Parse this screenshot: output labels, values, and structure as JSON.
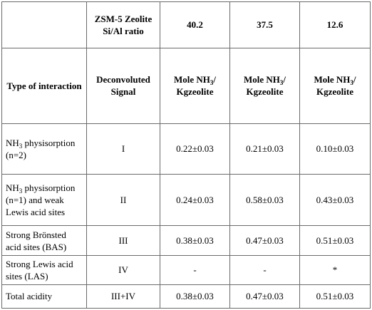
{
  "header": {
    "row1": [
      "",
      "ZSM-5 Zeolite Si/Al ratio",
      "40.2",
      "37.5",
      "12.6"
    ],
    "type_label": "Type of interaction",
    "signal_label": "Deconvoluted Signal",
    "unit": {
      "prefix": "Mole NH",
      "sub": "3",
      "suffix": "/ Kgzeolite"
    }
  },
  "rows": [
    {
      "type": "physisorption (n=2)",
      "type_prefix": "NH",
      "type_sub": "3",
      "signal": "I",
      "values": [
        "0.22±0.03",
        "0.21±0.03",
        "0.10±0.03"
      ]
    },
    {
      "type": "physisorption (n=1) and weak Lewis acid sites",
      "type_prefix": "NH",
      "type_sub": "3",
      "signal": "II",
      "values": [
        "0.24±0.03",
        "0.58±0.03",
        "0.43±0.03"
      ]
    },
    {
      "type": "Strong Brönsted acid sites (BAS)",
      "type_prefix": "",
      "type_sub": "",
      "signal": "III",
      "values": [
        "0.38±0.03",
        "0.47±0.03",
        "0.51±0.03"
      ]
    },
    {
      "type": "Strong Lewis acid sites (LAS)",
      "type_prefix": "",
      "type_sub": "",
      "signal": "IV",
      "values": [
        "-",
        "-",
        "*"
      ]
    },
    {
      "type": "Total acidity",
      "type_prefix": "",
      "type_sub": "",
      "signal": "III+IV",
      "values": [
        "0.38±0.03",
        "0.47±0.03",
        "0.51±0.03"
      ]
    }
  ]
}
